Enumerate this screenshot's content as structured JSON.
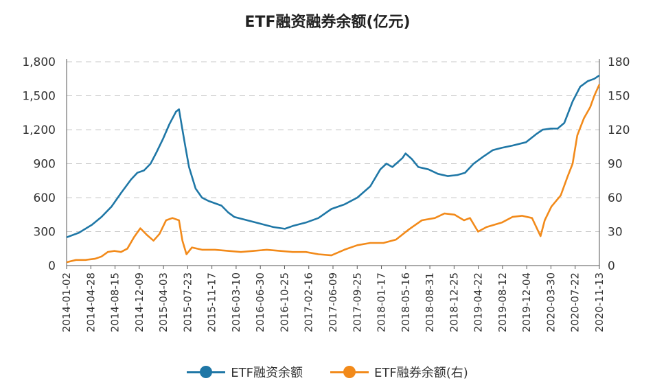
{
  "chart_data": {
    "type": "line",
    "title": "ETF融资融券余额(亿元)",
    "colors": {
      "financing": "#1f77a6",
      "lending": "#f28a1a",
      "grid": "#c8c8c8",
      "axis": "#555555"
    },
    "y_left": {
      "min": 0,
      "max": 1800,
      "ticks": [
        0,
        300,
        600,
        900,
        1200,
        1500,
        1800
      ],
      "tick_labels": [
        "0",
        "300",
        "600",
        "900",
        "1,200",
        "1,500",
        "1,800"
      ]
    },
    "y_right": {
      "min": 0,
      "max": 180,
      "ticks": [
        0,
        30,
        60,
        90,
        120,
        150,
        180
      ],
      "tick_labels": [
        "0",
        "30",
        "60",
        "90",
        "120",
        "150",
        "180"
      ]
    },
    "x_tick_labels": [
      "2014-01-02",
      "2014-04-28",
      "2014-08-15",
      "2014-12-09",
      "2015-04-03",
      "2015-07-23",
      "2015-11-17",
      "2016-03-10",
      "2016-06-30",
      "2016-10-25",
      "2017-02-16",
      "2017-06-09",
      "2017-09-25",
      "2018-01-17",
      "2018-05-16",
      "2018-08-31",
      "2018-12-25",
      "2019-04-22",
      "2019-08-12",
      "2019-12-04",
      "2020-03-30",
      "2020-07-22",
      "2020-11-13"
    ],
    "x_range": [
      "2014-01-02",
      "2020-11-13"
    ],
    "grid": true,
    "legend_position": "bottom",
    "series": [
      {
        "name": "ETF融资余额",
        "axis": "left",
        "points": [
          [
            "2014-01-02",
            250
          ],
          [
            "2014-03-01",
            290
          ],
          [
            "2014-05-01",
            360
          ],
          [
            "2014-06-15",
            430
          ],
          [
            "2014-08-01",
            520
          ],
          [
            "2014-09-15",
            640
          ],
          [
            "2014-11-01",
            760
          ],
          [
            "2014-12-01",
            820
          ],
          [
            "2015-01-01",
            840
          ],
          [
            "2015-02-01",
            900
          ],
          [
            "2015-03-01",
            1000
          ],
          [
            "2015-04-01",
            1120
          ],
          [
            "2015-05-01",
            1250
          ],
          [
            "2015-06-01",
            1360
          ],
          [
            "2015-06-15",
            1380
          ],
          [
            "2015-07-01",
            1200
          ],
          [
            "2015-07-15",
            1050
          ],
          [
            "2015-08-01",
            870
          ],
          [
            "2015-09-01",
            680
          ],
          [
            "2015-10-01",
            600
          ],
          [
            "2015-11-01",
            570
          ],
          [
            "2016-01-01",
            530
          ],
          [
            "2016-02-01",
            470
          ],
          [
            "2016-03-01",
            430
          ],
          [
            "2016-05-01",
            400
          ],
          [
            "2016-07-01",
            370
          ],
          [
            "2016-09-01",
            340
          ],
          [
            "2016-10-25",
            325
          ],
          [
            "2016-12-01",
            350
          ],
          [
            "2017-02-01",
            380
          ],
          [
            "2017-04-01",
            420
          ],
          [
            "2017-06-01",
            500
          ],
          [
            "2017-08-01",
            540
          ],
          [
            "2017-10-01",
            600
          ],
          [
            "2017-12-01",
            700
          ],
          [
            "2018-01-17",
            850
          ],
          [
            "2018-02-15",
            900
          ],
          [
            "2018-03-15",
            870
          ],
          [
            "2018-05-01",
            950
          ],
          [
            "2018-05-16",
            990
          ],
          [
            "2018-06-15",
            940
          ],
          [
            "2018-07-15",
            870
          ],
          [
            "2018-09-01",
            850
          ],
          [
            "2018-10-15",
            810
          ],
          [
            "2018-12-01",
            790
          ],
          [
            "2019-01-15",
            800
          ],
          [
            "2019-02-20",
            820
          ],
          [
            "2019-04-01",
            900
          ],
          [
            "2019-05-15",
            960
          ],
          [
            "2019-07-01",
            1020
          ],
          [
            "2019-08-12",
            1040
          ],
          [
            "2019-10-01",
            1060
          ],
          [
            "2019-12-04",
            1090
          ],
          [
            "2020-01-20",
            1160
          ],
          [
            "2020-02-20",
            1200
          ],
          [
            "2020-03-30",
            1210
          ],
          [
            "2020-05-01",
            1210
          ],
          [
            "2020-06-01",
            1260
          ],
          [
            "2020-07-10",
            1450
          ],
          [
            "2020-08-15",
            1580
          ],
          [
            "2020-09-20",
            1630
          ],
          [
            "2020-10-20",
            1650
          ],
          [
            "2020-11-13",
            1680
          ]
        ]
      },
      {
        "name": "ETF融券余额(右)",
        "axis": "right",
        "points": [
          [
            "2014-01-02",
            3
          ],
          [
            "2014-02-15",
            5
          ],
          [
            "2014-04-01",
            5
          ],
          [
            "2014-05-15",
            6
          ],
          [
            "2014-06-15",
            8
          ],
          [
            "2014-07-15",
            12
          ],
          [
            "2014-08-15",
            13
          ],
          [
            "2014-09-15",
            12
          ],
          [
            "2014-10-15",
            15
          ],
          [
            "2014-11-15",
            25
          ],
          [
            "2014-12-15",
            33
          ],
          [
            "2015-01-15",
            27
          ],
          [
            "2015-02-15",
            22
          ],
          [
            "2015-03-15",
            28
          ],
          [
            "2015-04-15",
            40
          ],
          [
            "2015-05-15",
            42
          ],
          [
            "2015-06-15",
            40
          ],
          [
            "2015-07-01",
            22
          ],
          [
            "2015-07-20",
            10
          ],
          [
            "2015-08-15",
            16
          ],
          [
            "2015-10-01",
            14
          ],
          [
            "2015-12-01",
            14
          ],
          [
            "2016-02-01",
            13
          ],
          [
            "2016-04-01",
            12
          ],
          [
            "2016-06-01",
            13
          ],
          [
            "2016-08-01",
            14
          ],
          [
            "2016-10-01",
            13
          ],
          [
            "2016-12-01",
            12
          ],
          [
            "2017-02-01",
            12
          ],
          [
            "2017-04-01",
            10
          ],
          [
            "2017-06-01",
            9
          ],
          [
            "2017-08-01",
            14
          ],
          [
            "2017-10-01",
            18
          ],
          [
            "2017-12-01",
            20
          ],
          [
            "2018-02-01",
            20
          ],
          [
            "2018-04-01",
            23
          ],
          [
            "2018-06-01",
            32
          ],
          [
            "2018-08-01",
            40
          ],
          [
            "2018-10-01",
            42
          ],
          [
            "2018-11-15",
            46
          ],
          [
            "2019-01-01",
            45
          ],
          [
            "2019-02-15",
            40
          ],
          [
            "2019-03-15",
            42
          ],
          [
            "2019-04-22",
            30
          ],
          [
            "2019-06-01",
            34
          ],
          [
            "2019-08-12",
            38
          ],
          [
            "2019-10-01",
            43
          ],
          [
            "2019-11-15",
            44
          ],
          [
            "2020-01-01",
            42
          ],
          [
            "2020-02-10",
            26
          ],
          [
            "2020-03-01",
            40
          ],
          [
            "2020-04-01",
            52
          ],
          [
            "2020-05-15",
            62
          ],
          [
            "2020-06-15",
            78
          ],
          [
            "2020-07-10",
            90
          ],
          [
            "2020-08-01",
            115
          ],
          [
            "2020-09-01",
            130
          ],
          [
            "2020-10-01",
            140
          ],
          [
            "2020-10-20",
            150
          ],
          [
            "2020-11-13",
            160
          ]
        ]
      }
    ]
  }
}
